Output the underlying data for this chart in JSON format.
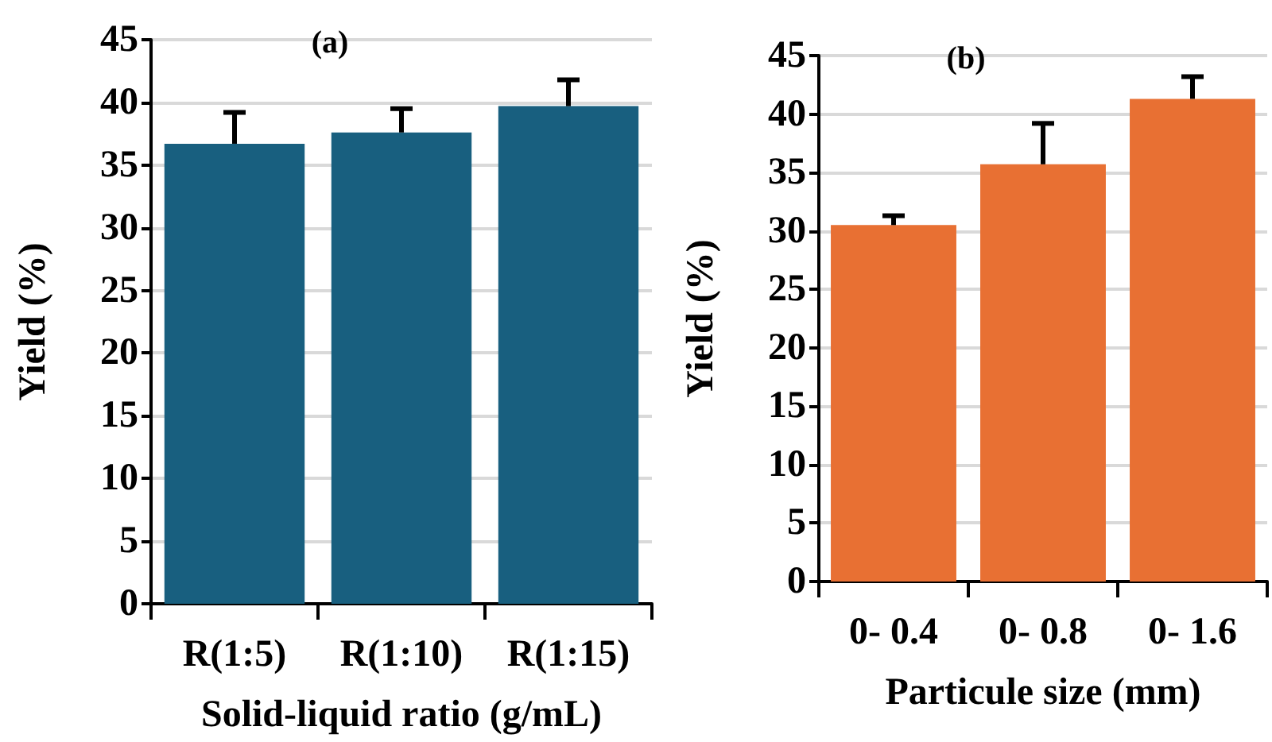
{
  "chart_data": [
    {
      "type": "bar",
      "title": "(a)",
      "xlabel": "Solid-liquid ratio (g/mL)",
      "ylabel": "Yield (%)",
      "categories": [
        "R(1:5)",
        "R(1:10)",
        "R(1:15)"
      ],
      "values": [
        36.7,
        37.6,
        39.7
      ],
      "errors": [
        [
          36.7,
          39.2
        ],
        [
          37.6,
          39.5
        ],
        [
          39.7,
          41.8
        ]
      ],
      "color": "#185f7f",
      "ylim": [
        0,
        45
      ],
      "yticks": [
        0,
        5,
        10,
        15,
        20,
        25,
        30,
        35,
        40,
        45
      ],
      "grid": "y"
    },
    {
      "type": "bar",
      "title": "(b)",
      "xlabel": "Particule size (mm)",
      "ylabel": "Yield (%)",
      "categories": [
        "0- 0.4",
        "0- 0.8",
        "0- 1.6"
      ],
      "values": [
        30.5,
        35.7,
        41.3
      ],
      "errors": [
        [
          30.5,
          31.3
        ],
        [
          35.7,
          39.2
        ],
        [
          41.3,
          43.2
        ]
      ],
      "color": "#e87033",
      "ylim": [
        0,
        45
      ],
      "yticks": [
        0,
        5,
        10,
        15,
        20,
        25,
        30,
        35,
        40,
        45
      ],
      "grid": "y"
    }
  ]
}
